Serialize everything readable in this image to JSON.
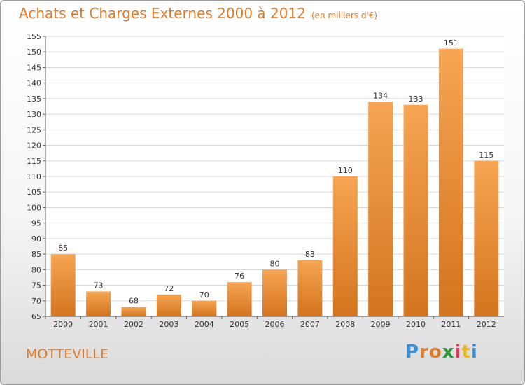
{
  "header": {
    "title": "Achats et Charges Externes 2000 à 2012",
    "subtitle": "(en milliers d'€)"
  },
  "footer": {
    "city": "MOTTEVILLE",
    "logo_letters": [
      "P",
      "r",
      "o",
      "x",
      "i",
      "t",
      "i"
    ]
  },
  "colors": {
    "accent": "#e07b2a",
    "bar_top": "#f6a553",
    "bar_bottom": "#d4741e",
    "logo": [
      "#3a8fd8",
      "#e07b2a",
      "#e07b2a",
      "#2c9a3a",
      "#e03a5a",
      "#e8b820",
      "#3a8fd8"
    ]
  },
  "chart_data": {
    "type": "bar",
    "categories": [
      "2000",
      "2001",
      "2002",
      "2003",
      "2004",
      "2005",
      "2006",
      "2007",
      "2008",
      "2009",
      "2010",
      "2011",
      "2012"
    ],
    "values": [
      85,
      73,
      68,
      72,
      70,
      76,
      80,
      83,
      110,
      134,
      133,
      151,
      115
    ],
    "ylim": [
      65,
      155
    ],
    "yticks": [
      65,
      70,
      75,
      80,
      85,
      90,
      95,
      100,
      105,
      110,
      115,
      120,
      125,
      130,
      135,
      140,
      145,
      150,
      155
    ],
    "grid": true
  }
}
